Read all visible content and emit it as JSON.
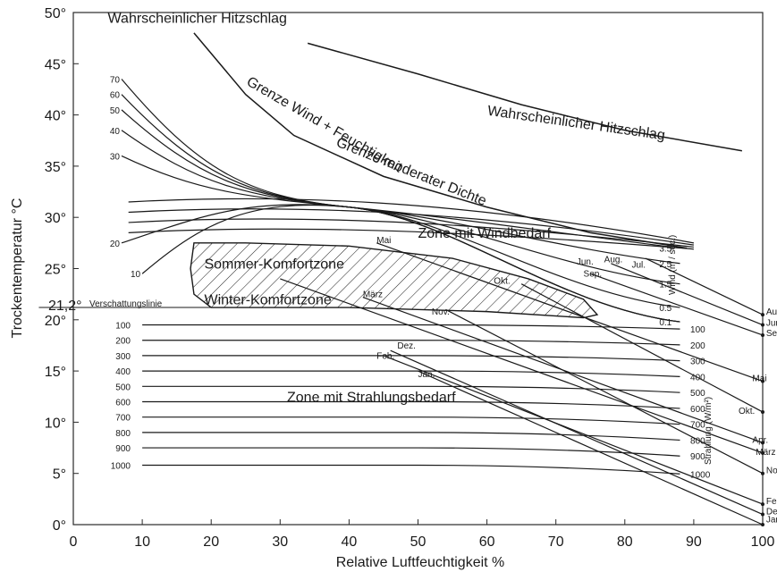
{
  "chart_data": {
    "type": "line",
    "xlabel": "Relative Luftfeuchtigkeit %",
    "ylabel": "Trockentemperatur °C",
    "xlim": [
      0,
      100
    ],
    "ylim": [
      0,
      50
    ],
    "x_ticks": [
      "0",
      "10",
      "20",
      "30",
      "40",
      "50",
      "60",
      "70",
      "80",
      "90",
      "100"
    ],
    "y_ticks": [
      "0°",
      "5°",
      "10°",
      "15°",
      "20°",
      "25°",
      "30°",
      "35°",
      "40°",
      "45°",
      "50°"
    ],
    "shading_line": {
      "label": "21,2°",
      "name": "Verschattungslinie",
      "y": 21.2
    },
    "zones": [
      {
        "name": "Wahrscheinlicher Hitzschlag",
        "x": 5,
        "y": 49
      },
      {
        "name": "Wahrscheinlicher Hitzschlag",
        "x": 60,
        "y": 40
      },
      {
        "name": "Grenze Wind + Feuchtigkeit",
        "x": 25,
        "y": 43
      },
      {
        "name": "Grenze moderater Dichte",
        "x": 38,
        "y": 37
      },
      {
        "name": "Zone mit Windbedarf",
        "x": 50,
        "y": 28
      },
      {
        "name": "Sommer-Komfortzone",
        "x": 19,
        "y": 25
      },
      {
        "name": "Winter-Komfortzone",
        "x": 19,
        "y": 21.5
      },
      {
        "name": "Zone mit Strahlungsbedarf",
        "x": 31,
        "y": 12
      }
    ],
    "upper_boundaries": [
      {
        "points": [
          [
            17.5,
            48
          ],
          [
            25,
            42
          ],
          [
            32,
            38
          ],
          [
            45,
            34
          ],
          [
            60,
            31
          ],
          [
            75,
            28.5
          ],
          [
            89,
            27
          ]
        ]
      },
      {
        "points": [
          [
            34,
            47
          ],
          [
            50,
            44
          ],
          [
            65,
            41
          ],
          [
            80,
            38.5
          ],
          [
            97,
            36.5
          ]
        ]
      }
    ],
    "comfort_zone": {
      "outline": [
        [
          17.5,
          27.5
        ],
        [
          25,
          27.5
        ],
        [
          40,
          27.2
        ],
        [
          55,
          26
        ],
        [
          66,
          24
        ],
        [
          74,
          22
        ],
        [
          76,
          20.5
        ],
        [
          74,
          20.2
        ],
        [
          60,
          20.8
        ],
        [
          40,
          21.2
        ],
        [
          20,
          21.2
        ],
        [
          17.5,
          22.5
        ],
        [
          17,
          25
        ]
      ],
      "hatched": true
    },
    "wind_curves": {
      "labels": [
        "70",
        "60",
        "50",
        "40",
        "30",
        "20",
        "10"
      ],
      "start_y": [
        43.5,
        42,
        40.5,
        38.5,
        36,
        27.5,
        24.5
      ],
      "end_labels": [
        "3.5",
        "2.5",
        "1.5",
        "0.5",
        "0.1"
      ],
      "end_y": [
        27,
        25.5,
        23.5,
        21.2,
        19.8
      ],
      "axis_label": "Wind (m / sec.)"
    },
    "radiation_lines": {
      "labels": [
        "100",
        "200",
        "300",
        "400",
        "500",
        "600",
        "700",
        "800",
        "900",
        "1000"
      ],
      "y": [
        19.5,
        18,
        16.5,
        15,
        13.5,
        12,
        10.5,
        9,
        7.5,
        5.8
      ],
      "right_labels": [
        "100",
        "200",
        "300",
        "400",
        "500",
        "600",
        "700",
        "800",
        "900",
        "1000"
      ],
      "axis_label": "Strahlung (W/m²)"
    },
    "month_paths": [
      {
        "name": "Aug.",
        "from": [
          83,
          26
        ],
        "to": [
          100,
          20.5
        ]
      },
      {
        "name": "Jun.",
        "from": [
          78,
          25.5
        ],
        "to": [
          100,
          19.5
        ]
      },
      {
        "name": "Sep.",
        "from": [
          75,
          24.5
        ],
        "to": [
          100,
          18.5
        ]
      },
      {
        "name": "Mai",
        "from": [
          44,
          27.5
        ],
        "to": [
          100,
          14
        ]
      },
      {
        "name": "Okt.",
        "from": [
          65,
          23.5
        ],
        "to": [
          100,
          11
        ]
      },
      {
        "name": "Apr.",
        "from": [
          42,
          22.2
        ],
        "to": [
          100,
          8
        ]
      },
      {
        "name": "März",
        "from": [
          30,
          24
        ],
        "to": [
          100,
          7
        ]
      },
      {
        "name": "Nov.",
        "from": [
          54,
          21
        ],
        "to": [
          100,
          5
        ]
      },
      {
        "name": "Feb.",
        "from": [
          45,
          16.5
        ],
        "to": [
          100,
          2
        ]
      },
      {
        "name": "Dez.",
        "from": [
          46,
          17
        ],
        "to": [
          100,
          1
        ]
      },
      {
        "name": "Jan.",
        "from": [
          50,
          15
        ],
        "to": [
          100,
          0
        ]
      }
    ],
    "month_labels": [
      {
        "text": "Mai",
        "x": 44,
        "y": 27.5
      },
      {
        "text": "Okt.",
        "x": 61,
        "y": 23.5
      },
      {
        "text": "März",
        "x": 42,
        "y": 22.2
      },
      {
        "text": "Nov.",
        "x": 52,
        "y": 20.5
      },
      {
        "text": "Jun.",
        "x": 73,
        "y": 25.4
      },
      {
        "text": "Aug.",
        "x": 77,
        "y": 25.6
      },
      {
        "text": "Jul.",
        "x": 81,
        "y": 25.1
      },
      {
        "text": "Sep.",
        "x": 74,
        "y": 24.2
      },
      {
        "text": "Dez.",
        "x": 47,
        "y": 17.2
      },
      {
        "text": "Feb.",
        "x": 44,
        "y": 16.2
      },
      {
        "text": "Jan.",
        "x": 50,
        "y": 14.4
      },
      {
        "text": "Aug.",
        "x": 100.5,
        "y": 20.5
      },
      {
        "text": "Jun.",
        "x": 100.5,
        "y": 19.4
      },
      {
        "text": "Sep.",
        "x": 100.5,
        "y": 18.4
      },
      {
        "text": "Mai",
        "x": 98.5,
        "y": 14.0
      },
      {
        "text": "Okt.",
        "x": 96.5,
        "y": 10.8
      },
      {
        "text": "Apr.",
        "x": 98.5,
        "y": 8.0
      },
      {
        "text": "März",
        "x": 99,
        "y": 6.8
      },
      {
        "text": "Nov.",
        "x": 100.5,
        "y": 5.0
      },
      {
        "text": "Feb.",
        "x": 100.5,
        "y": 2.0
      },
      {
        "text": "Dez.",
        "x": 100.5,
        "y": 1.0
      },
      {
        "text": "Jan.",
        "x": 100.5,
        "y": 0.2
      }
    ]
  }
}
